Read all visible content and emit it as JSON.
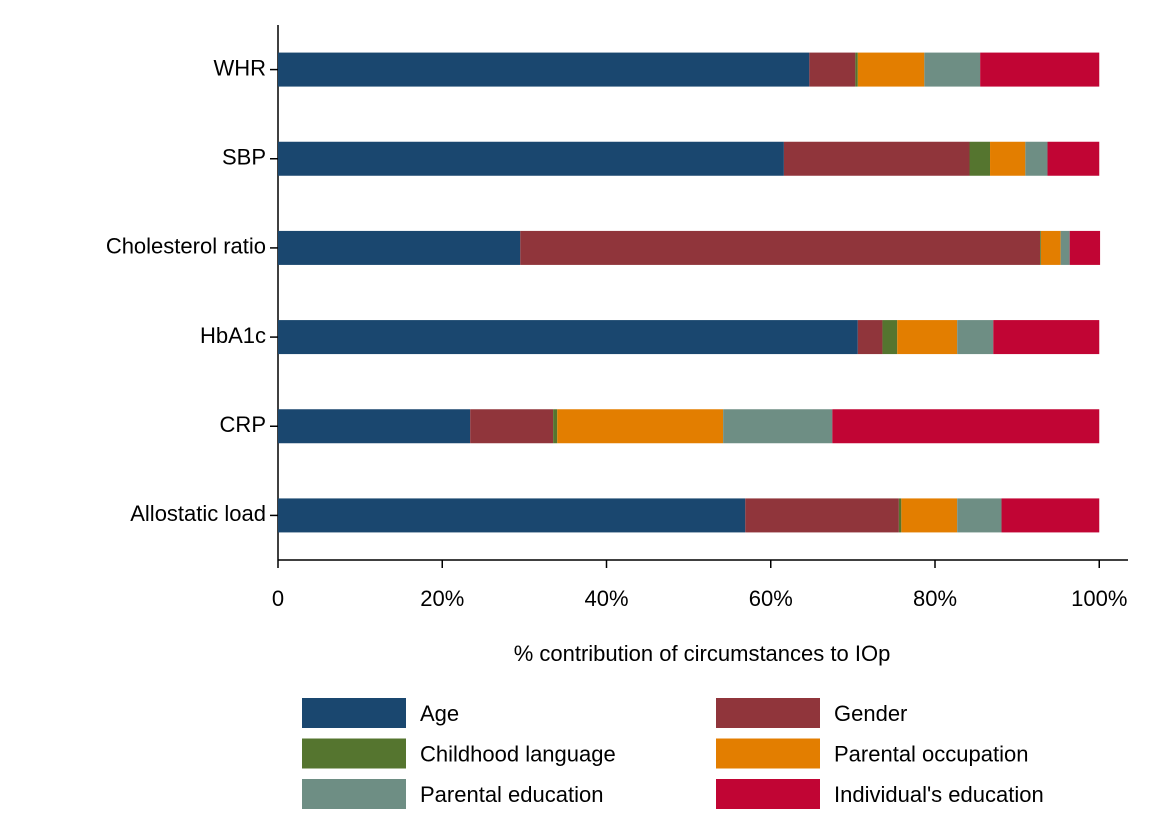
{
  "chart_data": {
    "type": "stacked-bar-horizontal",
    "x_label": "% contribution of circumstances to IOp",
    "categories": [
      "WHR",
      "SBP",
      "Cholesterol ratio",
      "HbA1c",
      "CRP",
      "Allostatic load"
    ],
    "series": [
      {
        "name": "Age",
        "color": "#1a476f",
        "values": [
          64.7,
          61.6,
          29.5,
          70.6,
          23.4,
          56.9
        ]
      },
      {
        "name": "Gender",
        "color": "#90353b",
        "values": [
          5.6,
          22.6,
          63.3,
          3.0,
          10.1,
          18.7
        ]
      },
      {
        "name": "Childhood language",
        "color": "#55752f",
        "values": [
          0.3,
          2.5,
          0.1,
          1.8,
          0.5,
          0.3
        ]
      },
      {
        "name": "Parental occupation",
        "color": "#e37e00",
        "values": [
          8.1,
          4.3,
          2.4,
          7.3,
          20.2,
          6.8
        ]
      },
      {
        "name": "Parental education",
        "color": "#6e8e84",
        "values": [
          6.8,
          2.7,
          1.1,
          4.4,
          13.3,
          5.4
        ]
      },
      {
        "name": "Individual's education",
        "color": "#c10534",
        "values": [
          14.5,
          6.3,
          3.7,
          12.9,
          32.5,
          11.9
        ]
      }
    ],
    "xlim": [
      0,
      103.5
    ],
    "xticks": [
      0,
      {
        "value": 20,
        "label": "20%"
      },
      {
        "value": 40,
        "label": "40%"
      },
      {
        "value": 60,
        "label": "60%"
      },
      {
        "value": 80,
        "label": "80%"
      },
      {
        "value": 100,
        "label": "100%"
      }
    ],
    "legend": "bottom"
  }
}
